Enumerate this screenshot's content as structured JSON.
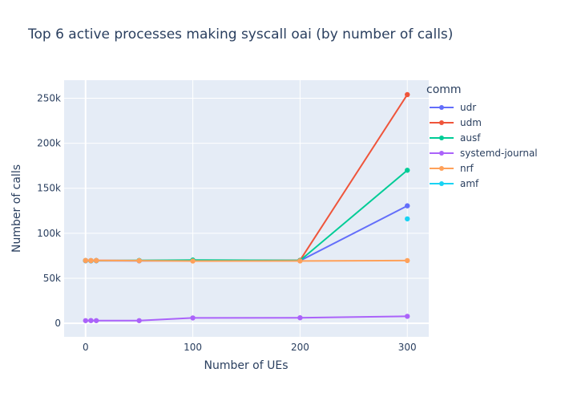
{
  "chart_data": {
    "type": "line",
    "title": "Top 6 active processes making syscall oai (by number of calls)",
    "xlabel": "Number of UEs",
    "ylabel": "Number of calls",
    "xlim": [
      -20,
      320
    ],
    "ylim": [
      -15000,
      270000
    ],
    "xticks": [
      0,
      100,
      200,
      300
    ],
    "xtick_labels": [
      "0",
      "100",
      "200",
      "300"
    ],
    "yticks": [
      0,
      50000,
      100000,
      150000,
      200000,
      250000
    ],
    "ytick_labels": [
      "0",
      "50k",
      "100k",
      "150k",
      "200k",
      "250k"
    ],
    "grid": true,
    "legend_title": "comm",
    "legend_position": "right",
    "series": [
      {
        "name": "udr",
        "color": "#636efa",
        "x": [
          0,
          5,
          10,
          50,
          100,
          200,
          300
        ],
        "y": [
          69500,
          69400,
          69500,
          69400,
          69600,
          69500,
          130500
        ]
      },
      {
        "name": "udm",
        "color": "#ef553b",
        "x": [
          0,
          5,
          10,
          50,
          100,
          200,
          300
        ],
        "y": [
          69800,
          69700,
          69800,
          69700,
          69900,
          70000,
          254000
        ]
      },
      {
        "name": "ausf",
        "color": "#00cc96",
        "x": [
          0,
          5,
          10,
          50,
          100,
          200,
          300
        ],
        "y": [
          69600,
          69500,
          69600,
          69800,
          70300,
          69800,
          170000
        ]
      },
      {
        "name": "systemd-journal",
        "color": "#ab63fa",
        "x": [
          0,
          5,
          10,
          50,
          100,
          200,
          300
        ],
        "y": [
          3000,
          3100,
          3000,
          3000,
          6000,
          6200,
          7800
        ]
      },
      {
        "name": "nrf",
        "color": "#ffa15a",
        "x": [
          0,
          5,
          10,
          50,
          100,
          200,
          300
        ],
        "y": [
          69700,
          69600,
          69700,
          69500,
          69200,
          69300,
          69700
        ]
      },
      {
        "name": "amf",
        "color": "#19d3f3",
        "x": [
          300
        ],
        "y": [
          116000
        ]
      }
    ]
  }
}
